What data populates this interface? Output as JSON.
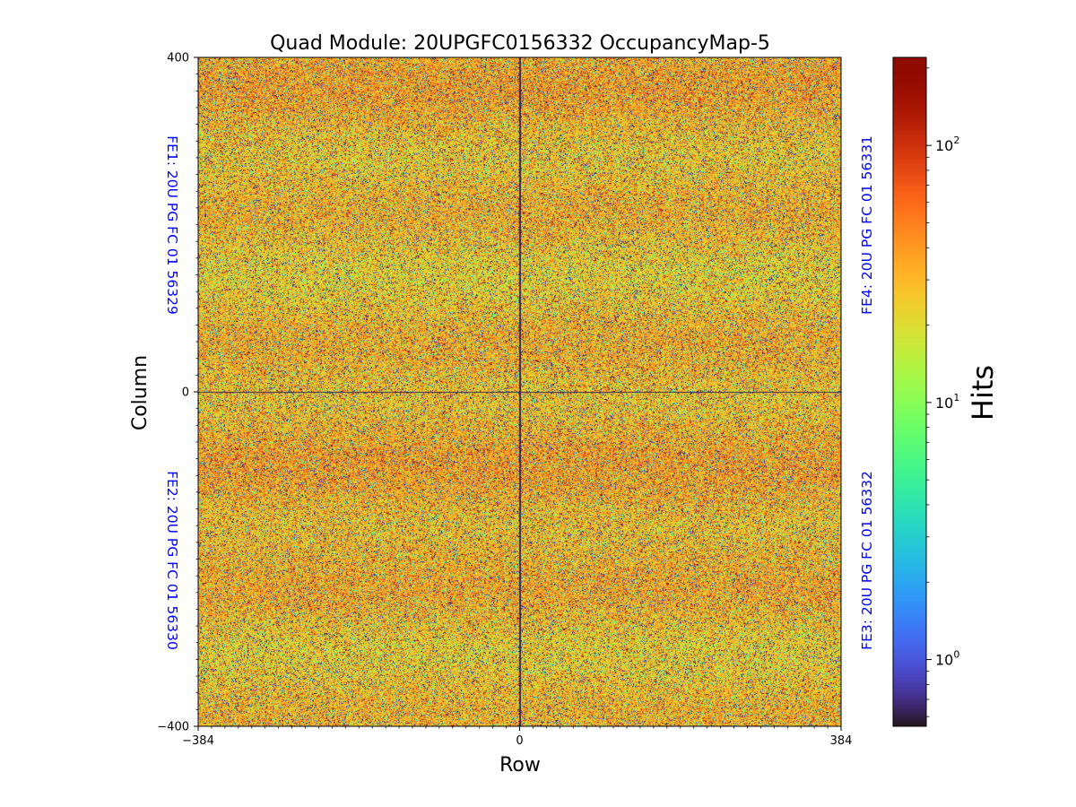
{
  "chart_data": {
    "type": "heatmap",
    "title": "Quad Module: 20UPGFC0156332 OccupancyMap-5",
    "xlabel": "Row",
    "ylabel": "Column",
    "xlim": [
      -384,
      384
    ],
    "ylim": [
      -400,
      400
    ],
    "x_ticks": [
      {
        "value": -384,
        "label": "−384"
      },
      {
        "value": 0,
        "label": "0"
      },
      {
        "value": 384,
        "label": "384"
      }
    ],
    "y_ticks": [
      {
        "value": 400,
        "label": "400"
      },
      {
        "value": 0,
        "label": "0"
      },
      {
        "value": -400,
        "label": "−400"
      }
    ],
    "colorbar": {
      "label": "Hits",
      "scale": "log",
      "colormap": "turbo",
      "min": 0.55,
      "max": 220,
      "major_ticks": [
        {
          "value": 1,
          "base": "10",
          "exp": "0"
        },
        {
          "value": 10,
          "base": "10",
          "exp": "1"
        },
        {
          "value": 100,
          "base": "10",
          "exp": "2"
        }
      ],
      "minor_ticks": [
        0.6,
        0.7,
        0.8,
        0.9,
        2,
        3,
        4,
        5,
        6,
        7,
        8,
        9,
        20,
        30,
        40,
        50,
        60,
        70,
        80,
        90,
        200
      ]
    },
    "chips": [
      {
        "id": "FE1",
        "label": "FE1: 20U PG FC 01 56329",
        "quadrant": "top-left",
        "x_range": [
          -384,
          0
        ],
        "y_range": [
          0,
          400
        ]
      },
      {
        "id": "FE2",
        "label": "FE2: 20U PG FC 01 56330",
        "quadrant": "bottom-left",
        "x_range": [
          -384,
          0
        ],
        "y_range": [
          -400,
          0
        ]
      },
      {
        "id": "FE3",
        "label": "FE3: 20U PG FC 01 56332",
        "quadrant": "bottom-right",
        "x_range": [
          0,
          384
        ],
        "y_range": [
          -400,
          0
        ]
      },
      {
        "id": "FE4",
        "label": "FE4: 20U PG FC 01 56331",
        "quadrant": "top-right",
        "x_range": [
          0,
          384
        ],
        "y_range": [
          0,
          400
        ]
      }
    ],
    "distribution": {
      "typical_hits": 30,
      "description": "Noisy occupancy: most pixels 10-100 hits, dominated by orange-yellow, with scattered dark low/high pixels and dark separator lines at row 0 and column 0"
    }
  },
  "colors": {
    "chip_label": "#0000ff",
    "axis": "#000000",
    "background": "#ffffff"
  }
}
